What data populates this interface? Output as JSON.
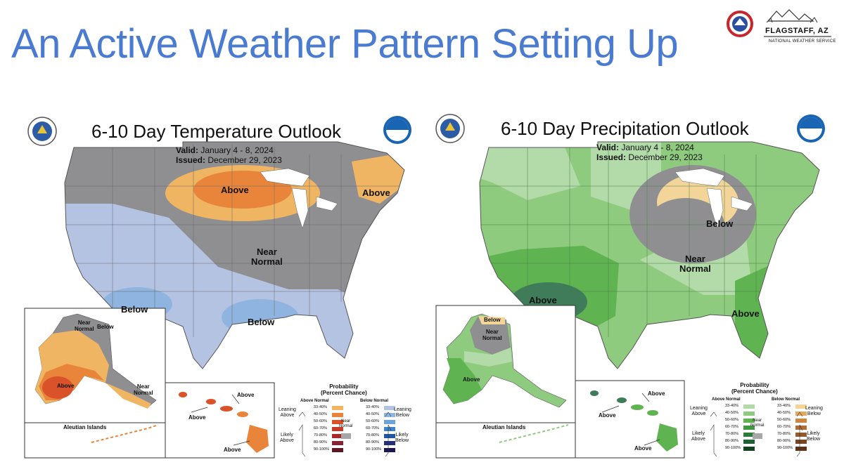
{
  "slide": {
    "title": "An Active Weather Pattern Setting Up",
    "office_logo": {
      "icon": "nws-flagstaff-logo",
      "name": "FLAGSTAFF, AZ",
      "sub": "NATIONAL WEATHER SERVICE"
    }
  },
  "maps": [
    {
      "id": "temp",
      "title": "6-10 Day Temperature Outlook",
      "valid_label": "Valid:",
      "valid_value": "January 4 - 8, 2024",
      "issued_label": "Issued:",
      "issued_value": "December 29, 2023",
      "regions": [
        {
          "text": "Above"
        },
        {
          "text": "Above"
        },
        {
          "text": "Near\nNormal"
        },
        {
          "text": "Below"
        },
        {
          "text": "Below"
        }
      ],
      "alaska_labels": [
        "Near\nNormal",
        "Below",
        "Above",
        "Near\nNormal"
      ],
      "hawaii_labels": [
        "Above",
        "Above",
        "Above"
      ],
      "aleutian_label": "Aleutian Islands",
      "legend": {
        "title": "Probability\n(Percent Chance)",
        "left_head": "Above Normal",
        "right_head": "Below Normal",
        "near_label": "Near\nNormal",
        "leaning_left": "Leaning\nAbove",
        "likely_left": "Likely\nAbove",
        "leaning_right": "Leaning\nBelow",
        "likely_right": "Likely\nBelow",
        "ticks": [
          "33-40%",
          "40-50%",
          "50-60%",
          "60-70%",
          "70-80%",
          "80-90%",
          "90-100%"
        ],
        "left_colors": [
          "#f0b562",
          "#e8853a",
          "#d9522a",
          "#c23b2c",
          "#a82a2c",
          "#862231",
          "#5e1621"
        ],
        "right_colors": [
          "#b5c3e3",
          "#8fb4df",
          "#6ea3d9",
          "#3d84c6",
          "#1e58a0",
          "#26307a",
          "#1a1650"
        ]
      }
    },
    {
      "id": "precip",
      "title": "6-10 Day Precipitation Outlook",
      "valid_label": "Valid:",
      "valid_value": "January 4 - 8, 2024",
      "issued_label": "Issued:",
      "issued_value": "December 29, 2023",
      "regions": [
        {
          "text": "Below"
        },
        {
          "text": "Near\nNormal"
        },
        {
          "text": "Above"
        },
        {
          "text": "Above"
        }
      ],
      "alaska_labels": [
        "Below",
        "Near\nNormal",
        "Above"
      ],
      "hawaii_labels": [
        "Above",
        "Above",
        "Above"
      ],
      "aleutian_label": "Aleutian Islands",
      "legend": {
        "title": "Probability\n(Percent Chance)",
        "left_head": "Above Normal",
        "right_head": "Below Normal",
        "near_label": "Near\nNormal",
        "leaning_left": "Leaning\nAbove",
        "likely_left": "Likely\nAbove",
        "leaning_right": "Leaning\nBelow",
        "likely_right": "Likely\nBelow",
        "ticks": [
          "33-40%",
          "40-50%",
          "50-60%",
          "60-70%",
          "70-80%",
          "80-90%",
          "90-100%"
        ],
        "left_colors": [
          "#b3dbaa",
          "#8fcb7e",
          "#5fb451",
          "#3f9a3f",
          "#2b7c3a",
          "#1e6132",
          "#134222"
        ],
        "right_colors": [
          "#f3d59a",
          "#e0a961",
          "#c98741",
          "#b06d34",
          "#94582b",
          "#7a4522",
          "#5e3418"
        ]
      }
    }
  ]
}
